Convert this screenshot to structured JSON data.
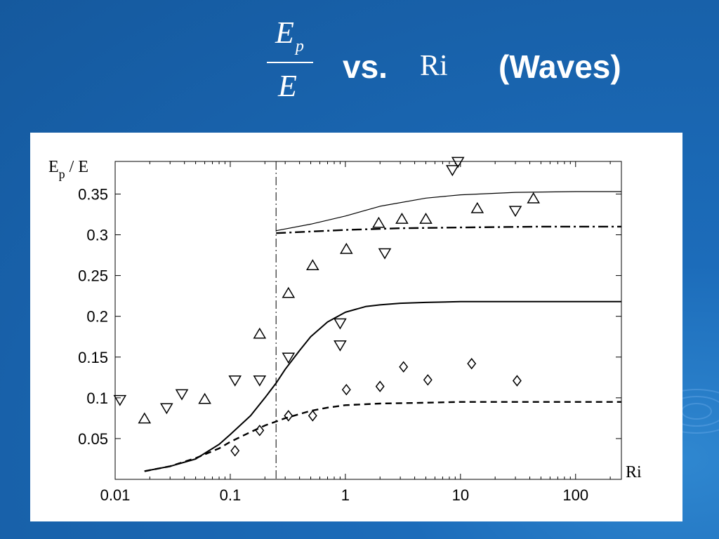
{
  "slide": {
    "title_fraction_numerator": "E",
    "title_fraction_numerator_sub": "p",
    "title_fraction_denominator": "E",
    "title_vs": "vs.",
    "title_ri": "Ri",
    "title_waves": "(Waves)"
  },
  "colors": {
    "background": "#1a63ae",
    "panel": "#ffffff",
    "ink": "#000000"
  },
  "chart_data": {
    "type": "scatter",
    "title": "",
    "xlabel": "Ri",
    "ylabel_main": "E",
    "ylabel_sub": "p",
    "ylabel_tail": " / E",
    "x_scale": "log",
    "xlim": [
      0.01,
      250
    ],
    "ylim": [
      0.0,
      0.39
    ],
    "x_ticks": [
      0.01,
      0.1,
      1,
      10,
      100
    ],
    "x_tick_labels": [
      "0.01",
      "0.1",
      "1",
      "10",
      "100"
    ],
    "y_ticks": [
      0.05,
      0.1,
      0.15,
      0.2,
      0.25,
      0.3,
      0.35
    ],
    "y_tick_labels": [
      "0.05",
      "0.1",
      "0.15",
      "0.2",
      "0.25",
      "0.3",
      "0.35"
    ],
    "grid": false,
    "vertical_reference_line": {
      "x": 0.25,
      "style": "dashdot"
    },
    "series": [
      {
        "marker": "triangle-up",
        "points": [
          [
            0.018,
            0.074
          ],
          [
            0.06,
            0.098
          ],
          [
            0.18,
            0.178
          ],
          [
            0.32,
            0.228
          ],
          [
            0.52,
            0.262
          ],
          [
            1.02,
            0.282
          ],
          [
            1.95,
            0.314
          ],
          [
            3.1,
            0.319
          ],
          [
            5.0,
            0.319
          ],
          [
            14.0,
            0.332
          ],
          [
            43.0,
            0.344
          ]
        ]
      },
      {
        "marker": "triangle-down",
        "points": [
          [
            0.011,
            0.098
          ],
          [
            0.028,
            0.088
          ],
          [
            0.038,
            0.105
          ],
          [
            0.11,
            0.122
          ],
          [
            0.18,
            0.122
          ],
          [
            0.32,
            0.15
          ],
          [
            0.9,
            0.192
          ],
          [
            0.9,
            0.165
          ],
          [
            2.2,
            0.278
          ],
          [
            8.5,
            0.38
          ],
          [
            9.5,
            0.39
          ],
          [
            30.0,
            0.33
          ]
        ]
      },
      {
        "marker": "diamond",
        "points": [
          [
            0.11,
            0.035
          ],
          [
            0.18,
            0.06
          ],
          [
            0.32,
            0.078
          ],
          [
            0.52,
            0.078
          ],
          [
            1.02,
            0.11
          ],
          [
            2.0,
            0.114
          ],
          [
            3.2,
            0.138
          ],
          [
            5.2,
            0.122
          ],
          [
            12.5,
            0.142
          ],
          [
            31.0,
            0.121
          ]
        ]
      },
      {
        "type": "line",
        "style": "solid-thin",
        "points": [
          [
            0.25,
            0.305
          ],
          [
            0.5,
            0.313
          ],
          [
            1,
            0.323
          ],
          [
            2,
            0.335
          ],
          [
            5,
            0.345
          ],
          [
            10,
            0.349
          ],
          [
            30,
            0.352
          ],
          [
            100,
            0.353
          ],
          [
            250,
            0.353
          ]
        ]
      },
      {
        "type": "line",
        "style": "dashdot-thick",
        "points": [
          [
            0.25,
            0.302
          ],
          [
            0.5,
            0.304
          ],
          [
            1,
            0.306
          ],
          [
            3,
            0.308
          ],
          [
            10,
            0.309
          ],
          [
            50,
            0.31
          ],
          [
            250,
            0.31
          ]
        ]
      },
      {
        "type": "line",
        "style": "solid",
        "points": [
          [
            0.018,
            0.01
          ],
          [
            0.03,
            0.016
          ],
          [
            0.05,
            0.025
          ],
          [
            0.08,
            0.043
          ],
          [
            0.1,
            0.055
          ],
          [
            0.15,
            0.078
          ],
          [
            0.2,
            0.1
          ],
          [
            0.25,
            0.118
          ],
          [
            0.3,
            0.135
          ],
          [
            0.4,
            0.158
          ],
          [
            0.5,
            0.175
          ],
          [
            0.7,
            0.193
          ],
          [
            1,
            0.205
          ],
          [
            1.5,
            0.212
          ],
          [
            2,
            0.214
          ],
          [
            3,
            0.216
          ],
          [
            5,
            0.217
          ],
          [
            10,
            0.218
          ],
          [
            100,
            0.218
          ],
          [
            250,
            0.218
          ]
        ]
      },
      {
        "type": "line",
        "style": "dashed",
        "points": [
          [
            0.018,
            0.01
          ],
          [
            0.03,
            0.016
          ],
          [
            0.05,
            0.026
          ],
          [
            0.08,
            0.038
          ],
          [
            0.1,
            0.046
          ],
          [
            0.15,
            0.058
          ],
          [
            0.2,
            0.066
          ],
          [
            0.3,
            0.075
          ],
          [
            0.5,
            0.084
          ],
          [
            0.7,
            0.088
          ],
          [
            1,
            0.091
          ],
          [
            2,
            0.093
          ],
          [
            5,
            0.094
          ],
          [
            10,
            0.095
          ],
          [
            100,
            0.095
          ],
          [
            250,
            0.095
          ]
        ]
      }
    ]
  }
}
